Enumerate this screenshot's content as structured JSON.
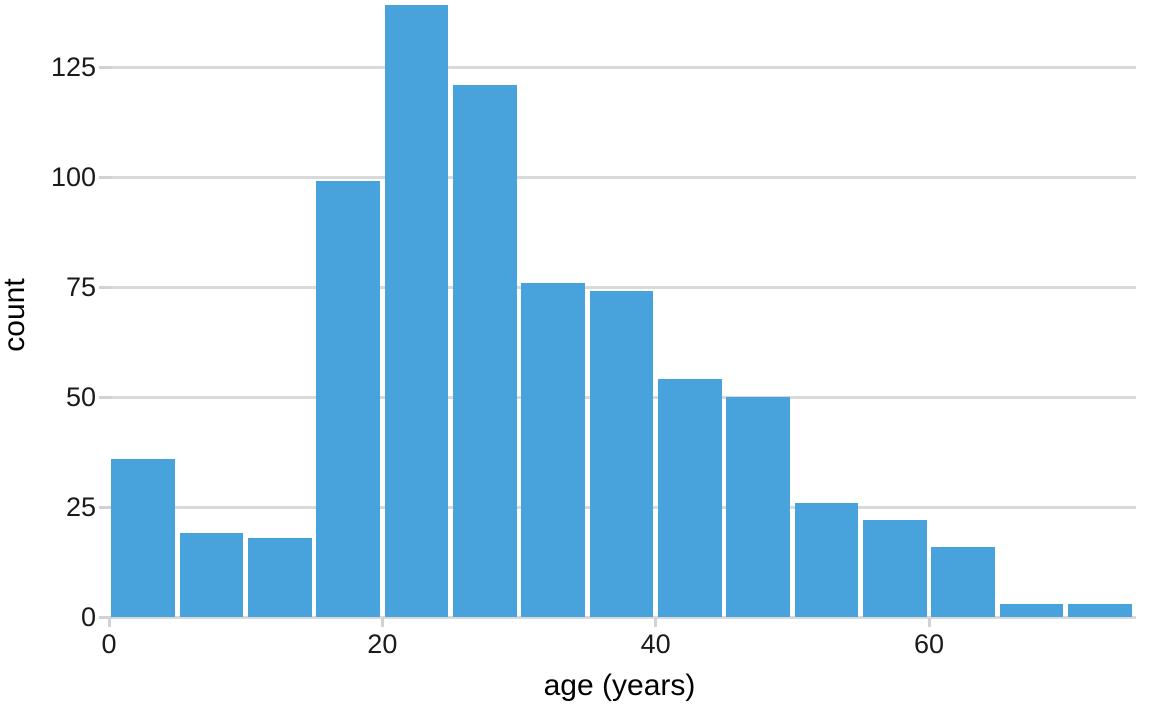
{
  "chart_data": {
    "type": "bar",
    "subtype": "histogram",
    "title": "",
    "xlabel": "age (years)",
    "ylabel": "count",
    "bin_width": 5,
    "bin_edges": [
      0,
      5,
      10,
      15,
      20,
      25,
      30,
      35,
      40,
      45,
      50,
      55,
      60,
      65,
      70,
      75
    ],
    "values": [
      36,
      19,
      18,
      99,
      139,
      121,
      76,
      74,
      54,
      50,
      26,
      22,
      16,
      3,
      3
    ],
    "xticks": [
      0,
      20,
      40,
      60
    ],
    "yticks": [
      0,
      25,
      50,
      75,
      100,
      125
    ],
    "xlim": [
      -0.45,
      75.15
    ],
    "ylim": [
      0,
      140
    ],
    "grid": "horizontal-only",
    "legend": "none",
    "colors": {
      "bar": "#48a2dc",
      "grid": "#d9d9d9",
      "tick": "#d2d2d2",
      "text": "#1a1a1a"
    }
  }
}
